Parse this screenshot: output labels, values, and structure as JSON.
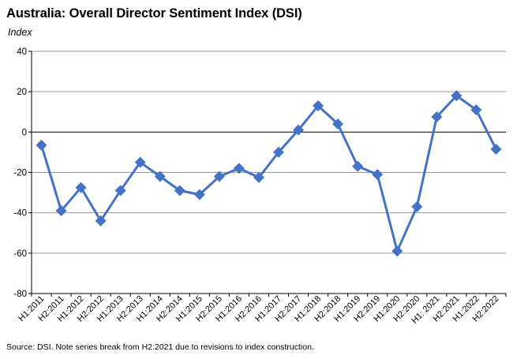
{
  "chart_data": {
    "type": "line",
    "title": "Australia: Overall Director Sentiment Index (DSI)",
    "ylabel": "Index",
    "xlabel": "",
    "ylim": [
      -80,
      40
    ],
    "yticks": [
      40,
      20,
      0,
      -20,
      -40,
      -60,
      -80
    ],
    "grid": true,
    "categories": [
      "H1:2011",
      "H2:2011",
      "H1:2012",
      "H2:2012",
      "H1:2013",
      "H2:2013",
      "H1:2014",
      "H2:2014",
      "H1:2015",
      "H2:2015",
      "H1:2016",
      "H2:2016",
      "H1:2017",
      "H2:2017",
      "H1:2018",
      "H2:2018",
      "H1:2019",
      "H2:2019",
      "H1:2020",
      "H2:2020",
      "H1: 2021",
      "H2:2021",
      "H1:2022",
      "H2:2022"
    ],
    "values": [
      -6.5,
      -39,
      -27.5,
      -44,
      -29,
      -15,
      -22,
      -29,
      -31,
      -22,
      -18,
      -22.5,
      -10,
      1,
      13,
      4,
      -17,
      -21,
      -59,
      -37,
      7.5,
      18,
      11,
      -8.5
    ],
    "line_color": "#4472C4",
    "source": "Source: DSI. Note series break from H2:2021 due to revisions to index construction."
  }
}
